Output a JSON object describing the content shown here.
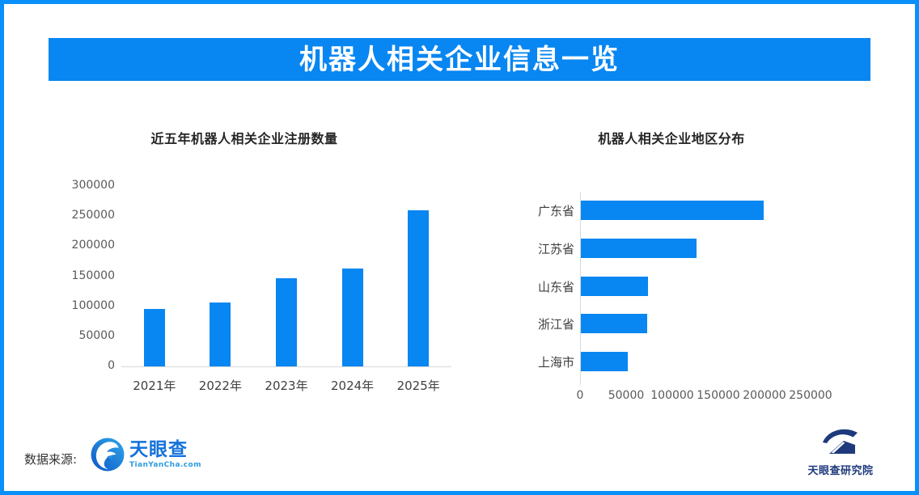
{
  "page": {
    "banner_title": "机器人相关企业信息一览",
    "accent_color": "#0886F2",
    "border_color": "#0990FA",
    "background_color": "#FFFFFF"
  },
  "footer": {
    "source_label": "数据来源:",
    "tianyancha": {
      "name": "天眼查",
      "subtitle": "TianYanCha.com",
      "brand_color": "#1472DB"
    },
    "institute": {
      "name": "天眼查研究院",
      "brand_color": "#1E3A7D"
    }
  },
  "chart_data": [
    {
      "type": "bar",
      "orientation": "vertical",
      "title": "近五年机器人相关企业注册数量",
      "categories": [
        "2021年",
        "2022年",
        "2023年",
        "2024年",
        "2025年"
      ],
      "values": [
        95000,
        106000,
        147000,
        163000,
        260000
      ],
      "xlabel": "",
      "ylabel": "",
      "ylim": [
        0,
        300000
      ],
      "ytick_step": 50000,
      "bar_color": "#0886F2",
      "grid": false,
      "legend": false
    },
    {
      "type": "bar",
      "orientation": "horizontal",
      "title": "机器人相关企业地区分布",
      "categories": [
        "广东省",
        "江苏省",
        "山东省",
        "浙江省",
        "上海市"
      ],
      "values": [
        198000,
        125000,
        73000,
        72000,
        51000
      ],
      "xlabel": "",
      "ylabel": "",
      "xlim": [
        0,
        250000
      ],
      "xtick_step": 50000,
      "bar_color": "#0886F2",
      "grid": false,
      "legend": false
    }
  ]
}
